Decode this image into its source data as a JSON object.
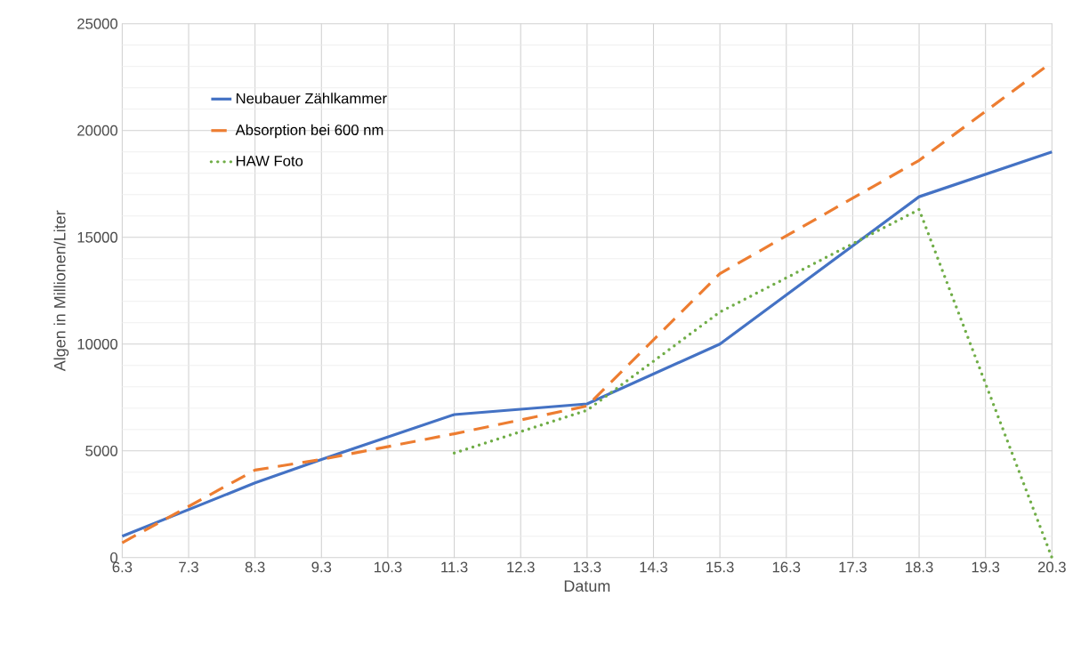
{
  "chart_data": {
    "type": "line",
    "xlabel": "Datum",
    "ylabel": "Algen in Millionen/Liter",
    "categories": [
      "6.3",
      "7.3",
      "8.3",
      "9.3",
      "10.3",
      "11.3",
      "12.3",
      "13.3",
      "14.3",
      "15.3",
      "16.3",
      "17.3",
      "18.3",
      "19.3",
      "20.3"
    ],
    "series": [
      {
        "name": "Neubauer Zählkammer",
        "color": "#4472c4",
        "line_style": "solid",
        "values": [
          1000,
          null,
          3500,
          4600,
          null,
          6700,
          null,
          7200,
          null,
          10000,
          null,
          null,
          16900,
          null,
          19000
        ]
      },
      {
        "name": "Absorption bei 600 nm",
        "color": "#ed7d31",
        "line_style": "dashed",
        "values": [
          700,
          null,
          4100,
          4600,
          null,
          5800,
          null,
          7100,
          null,
          13300,
          null,
          null,
          18600,
          null,
          23200
        ]
      },
      {
        "name": "HAW Foto",
        "color": "#70ad47",
        "line_style": "dotted",
        "values": [
          null,
          null,
          null,
          null,
          null,
          4900,
          null,
          6900,
          null,
          11500,
          null,
          null,
          16300,
          null,
          0
        ]
      }
    ],
    "ylim": [
      0,
      25000
    ],
    "yticks": [
      0,
      5000,
      10000,
      15000,
      20000,
      25000
    ],
    "grid": true,
    "legend": "top left",
    "marker": "none"
  }
}
